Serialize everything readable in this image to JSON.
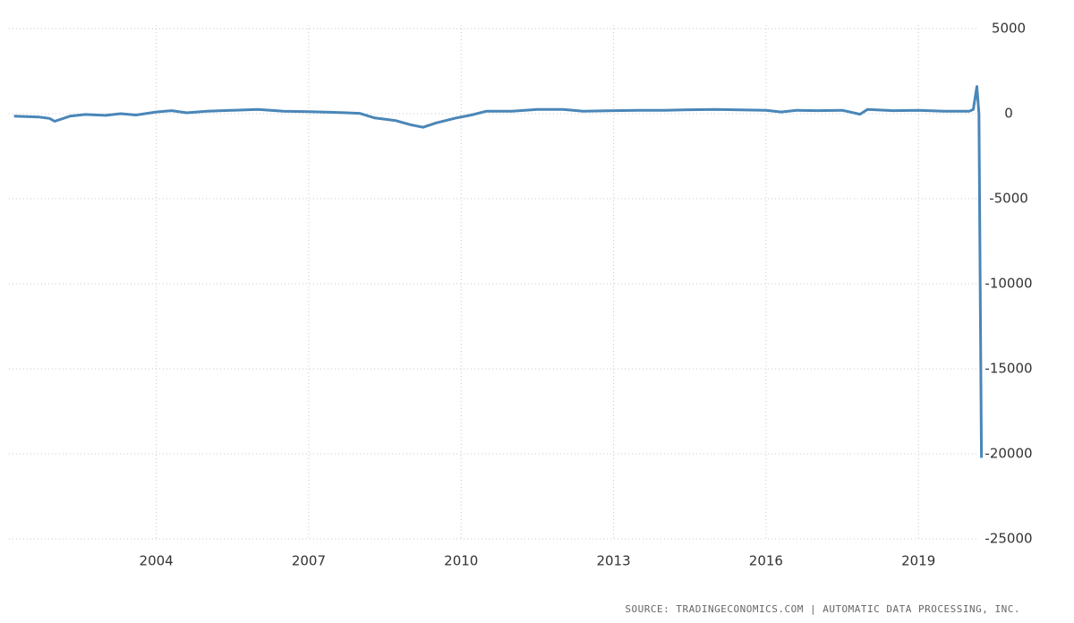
{
  "chart_data": {
    "type": "line",
    "source": "SOURCE: TRADINGECONOMICS.COM | AUTOMATIC DATA PROCESSING, INC.",
    "x": [
      2001.2,
      2001.7,
      2001.9,
      2002.0,
      2002.3,
      2002.6,
      2003.0,
      2003.3,
      2003.6,
      2004.0,
      2004.3,
      2004.6,
      2005.0,
      2005.5,
      2006.0,
      2006.5,
      2007.0,
      2007.5,
      2008.0,
      2008.3,
      2008.7,
      2009.0,
      2009.25,
      2009.5,
      2009.9,
      2010.2,
      2010.5,
      2011.0,
      2011.5,
      2012.0,
      2012.4,
      2013.0,
      2013.5,
      2014.0,
      2014.5,
      2015.0,
      2015.5,
      2016.0,
      2016.3,
      2016.6,
      2017.0,
      2017.5,
      2017.85,
      2018.0,
      2018.5,
      2019.0,
      2019.5,
      2020.0,
      2020.08,
      2020.15,
      2020.19,
      2020.24
    ],
    "values": [
      -150,
      -200,
      -280,
      -450,
      -150,
      -50,
      -100,
      0,
      -80,
      100,
      180,
      50,
      150,
      200,
      250,
      150,
      120,
      80,
      20,
      -250,
      -400,
      -650,
      -800,
      -550,
      -250,
      -80,
      150,
      150,
      250,
      250,
      150,
      180,
      200,
      200,
      230,
      250,
      220,
      200,
      100,
      200,
      180,
      200,
      -30,
      250,
      180,
      200,
      150,
      150,
      250,
      1600,
      0,
      -20236
    ],
    "color": "#4a86b8",
    "xlim": [
      2001.1,
      2020.3
    ],
    "xticks": [
      2004,
      2007,
      2010,
      2013,
      2016,
      2019
    ],
    "ylim": [
      -25000,
      6000
    ],
    "yticks": [
      5000,
      0,
      -5000,
      -10000,
      -15000,
      -20000,
      -25000
    ],
    "grid": true
  }
}
